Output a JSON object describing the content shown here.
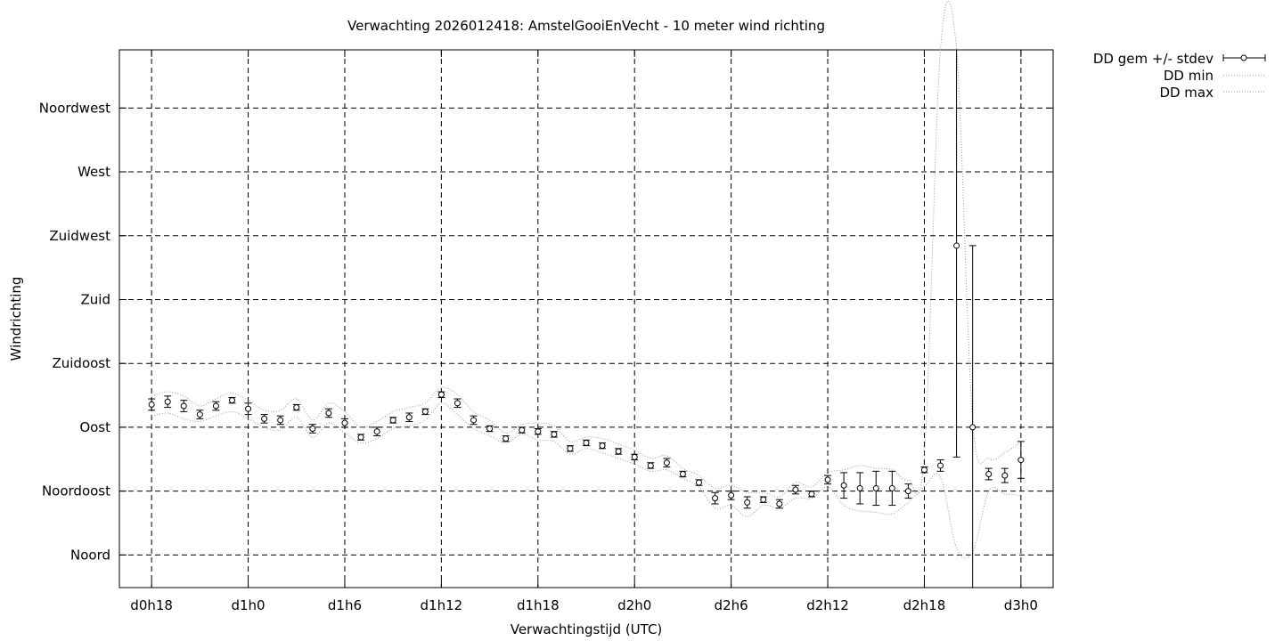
{
  "chart_data": {
    "type": "line",
    "title": "Verwachting 2026012418: AmstelGooiEnVecht - 10 meter wind richting",
    "xlabel": "Verwachtingstijd (UTC)",
    "ylabel": "Windrichting",
    "x_unit": "hours since d0h0",
    "x_ticks": [
      {
        "x": 18,
        "label": "d0h18"
      },
      {
        "x": 24,
        "label": "d1h0"
      },
      {
        "x": 30,
        "label": "d1h6"
      },
      {
        "x": 36,
        "label": "d1h12"
      },
      {
        "x": 42,
        "label": "d1h18"
      },
      {
        "x": 48,
        "label": "d2h0"
      },
      {
        "x": 54,
        "label": "d2h6"
      },
      {
        "x": 60,
        "label": "d2h12"
      },
      {
        "x": 66,
        "label": "d2h18"
      },
      {
        "x": 72,
        "label": "d3h0"
      }
    ],
    "y_ticks": [
      {
        "y": 0,
        "label": "Noord"
      },
      {
        "y": 45,
        "label": "Noordoost"
      },
      {
        "y": 90,
        "label": "Oost"
      },
      {
        "y": 135,
        "label": "Zuidoost"
      },
      {
        "y": 180,
        "label": "Zuid"
      },
      {
        "y": 225,
        "label": "Zuidwest"
      },
      {
        "y": 270,
        "label": "West"
      },
      {
        "y": 315,
        "label": "Noordwest"
      }
    ],
    "xlim": [
      16,
      74
    ],
    "ylim": [
      -23,
      356
    ],
    "grid": true,
    "legend_position": "outside-top-right",
    "series": [
      {
        "name": "DD gem +/- stdev",
        "style": "points-errorbars",
        "x": [
          18,
          19,
          20,
          21,
          22,
          23,
          24,
          25,
          26,
          27,
          28,
          29,
          30,
          31,
          32,
          33,
          34,
          35,
          36,
          37,
          38,
          39,
          40,
          41,
          42,
          43,
          44,
          45,
          46,
          47,
          48,
          49,
          50,
          51,
          52,
          53,
          54,
          55,
          56,
          57,
          58,
          59,
          60,
          61,
          62,
          63,
          64,
          65,
          66,
          67,
          68,
          69,
          70,
          71,
          72
        ],
        "y": [
          106,
          108,
          105,
          99,
          105,
          109,
          103,
          96,
          95,
          104,
          89,
          100,
          93,
          83,
          87,
          95,
          97,
          101,
          113,
          107,
          95,
          89,
          82,
          88,
          87,
          85,
          75,
          79,
          77,
          73,
          69,
          63,
          65,
          57,
          51,
          40,
          42,
          37,
          39,
          36,
          46,
          43,
          53,
          49,
          47,
          47,
          47,
          45,
          60,
          63,
          218,
          90,
          57,
          56,
          67
        ],
        "err": [
          4,
          4,
          4,
          3,
          3,
          2,
          4,
          3,
          3,
          2,
          3,
          3,
          3,
          2,
          3,
          2,
          3,
          2,
          2,
          3,
          3,
          2,
          2,
          2,
          2,
          2,
          2,
          2,
          2,
          2,
          2,
          2,
          3,
          2,
          2,
          4,
          3,
          4,
          2,
          3,
          3,
          2,
          3,
          9,
          11,
          12,
          12,
          5,
          2,
          4,
          149,
          128,
          4,
          5,
          13
        ]
      },
      {
        "name": "DD min",
        "style": "dotted",
        "x": [
          18,
          19,
          20,
          21,
          22,
          23,
          24,
          25,
          26,
          27,
          28,
          29,
          30,
          31,
          32,
          33,
          34,
          35,
          36,
          37,
          38,
          39,
          40,
          41,
          42,
          43,
          44,
          45,
          46,
          47,
          48,
          49,
          50,
          51,
          52,
          53,
          54,
          55,
          56,
          57,
          58,
          59,
          60,
          61,
          62,
          63,
          64,
          65,
          66,
          67,
          68,
          69,
          70,
          71,
          72
        ],
        "y": [
          98,
          100,
          96,
          94,
          98,
          101,
          96,
          90,
          88,
          97,
          83,
          93,
          86,
          79,
          82,
          89,
          91,
          95,
          107,
          99,
          89,
          84,
          79,
          85,
          81,
          80,
          71,
          75,
          72,
          68,
          64,
          59,
          60,
          54,
          48,
          33,
          35,
          27,
          35,
          33,
          40,
          40,
          48,
          35,
          31,
          30,
          29,
          37,
          48,
          55,
          5,
          2,
          45,
          43,
          42
        ]
      },
      {
        "name": "DD max",
        "style": "dotted",
        "x": [
          18,
          19,
          20,
          21,
          22,
          23,
          24,
          25,
          26,
          27,
          28,
          29,
          30,
          31,
          32,
          33,
          34,
          35,
          36,
          37,
          38,
          39,
          40,
          41,
          42,
          43,
          44,
          45,
          46,
          47,
          48,
          49,
          50,
          51,
          52,
          53,
          54,
          55,
          56,
          57,
          58,
          59,
          60,
          61,
          62,
          63,
          64,
          65,
          66,
          67,
          68,
          69,
          70,
          71,
          72
        ],
        "y": [
          112,
          115,
          112,
          105,
          110,
          114,
          109,
          102,
          102,
          110,
          95,
          107,
          101,
          90,
          94,
          101,
          104,
          107,
          118,
          113,
          101,
          95,
          86,
          92,
          93,
          91,
          80,
          83,
          82,
          78,
          74,
          68,
          70,
          61,
          56,
          47,
          49,
          44,
          44,
          41,
          51,
          48,
          58,
          60,
          63,
          61,
          60,
          53,
          70,
          360,
          360,
          94,
          68,
          72,
          80
        ]
      }
    ]
  }
}
